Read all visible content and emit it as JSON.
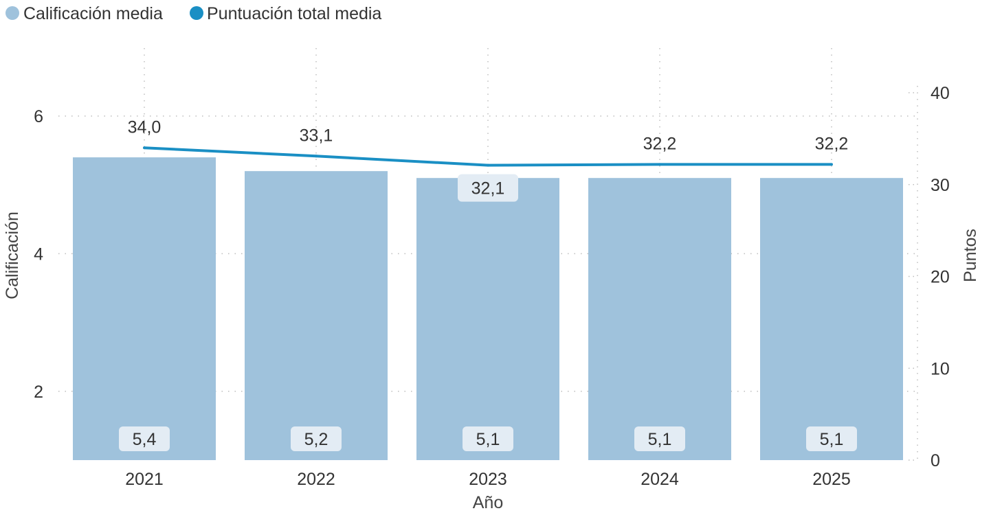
{
  "chart_data": {
    "type": "bar",
    "categories": [
      "2021",
      "2022",
      "2023",
      "2024",
      "2025"
    ],
    "xlabel": "Año",
    "ylabel": "Calificación",
    "y2label": "Puntos",
    "ylim": [
      1,
      7
    ],
    "y2lim": [
      0,
      45
    ],
    "yticks": [
      "2",
      "4",
      "6"
    ],
    "y2ticks": [
      "0",
      "10",
      "20",
      "30",
      "40"
    ],
    "grid": true,
    "legend_position": "top-left",
    "series": [
      {
        "name": "Calificación media",
        "type": "bar",
        "axis": "left",
        "color": "#9fc2dc",
        "values": [
          5.4,
          5.2,
          5.1,
          5.1,
          5.1
        ],
        "labels": [
          "5,4",
          "5,2",
          "5,1",
          "5,1",
          "5,1"
        ]
      },
      {
        "name": "Puntuación total media",
        "type": "line",
        "axis": "right",
        "color": "#1a8fc4",
        "values": [
          34.0,
          33.1,
          32.1,
          32.2,
          32.2
        ],
        "labels": [
          "34,0",
          "33,1",
          "32,1",
          "32,2",
          "32,2"
        ]
      }
    ]
  }
}
